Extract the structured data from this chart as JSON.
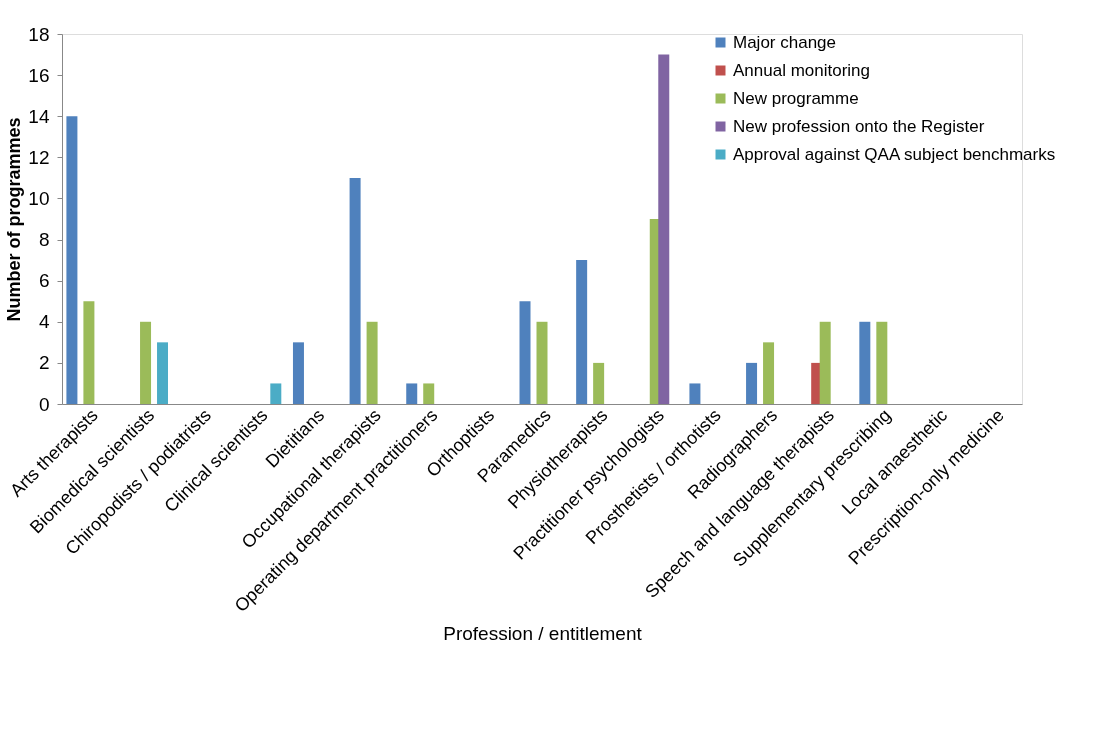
{
  "chart_data": {
    "type": "bar",
    "xlabel": "Profession / entitlement",
    "ylabel": "Number of programmes",
    "categories": [
      "Arts therapists",
      "Biomedical scientists",
      "Chiropodists / podiatrists",
      "Clinical scientists",
      "Dietitians",
      "Occupational therapists",
      "Operating department practitioners",
      "Orthoptists",
      "Paramedics",
      "Physiotherapists",
      "Practitioner psychologists",
      "Prosthetists / orthotists",
      "Radiographers",
      "Speech and language therapists",
      "Supplementary prescribing",
      "Local anaesthetic",
      "Prescription-only medicine"
    ],
    "series": [
      {
        "name": "Major change",
        "color": "#4f81bd",
        "values": [
          14,
          null,
          null,
          null,
          3,
          11,
          1,
          null,
          5,
          7,
          null,
          1,
          2,
          null,
          4,
          null,
          null
        ]
      },
      {
        "name": "Annual monitoring",
        "color": "#c0504d",
        "values": [
          null,
          null,
          null,
          null,
          null,
          null,
          null,
          null,
          null,
          null,
          null,
          null,
          null,
          2,
          null,
          null,
          null
        ]
      },
      {
        "name": "New programme",
        "color": "#9bbb59",
        "values": [
          5,
          4,
          null,
          null,
          null,
          4,
          1,
          null,
          4,
          2,
          9,
          null,
          3,
          4,
          4,
          null,
          null
        ]
      },
      {
        "name": "New profession onto the Register",
        "color": "#8064a2",
        "values": [
          null,
          null,
          null,
          null,
          null,
          null,
          null,
          null,
          null,
          null,
          17,
          null,
          null,
          null,
          null,
          null,
          null
        ]
      },
      {
        "name": "Approval against QAA subject benchmarks",
        "color": "#4bacc6",
        "values": [
          null,
          3,
          null,
          1,
          null,
          null,
          null,
          null,
          null,
          null,
          null,
          null,
          null,
          null,
          null,
          null,
          null
        ]
      }
    ],
    "ylim": [
      0,
      18
    ],
    "yticks": [
      0,
      2,
      4,
      6,
      8,
      10,
      12,
      14,
      16,
      18
    ],
    "grid": false,
    "legend": "top right"
  }
}
